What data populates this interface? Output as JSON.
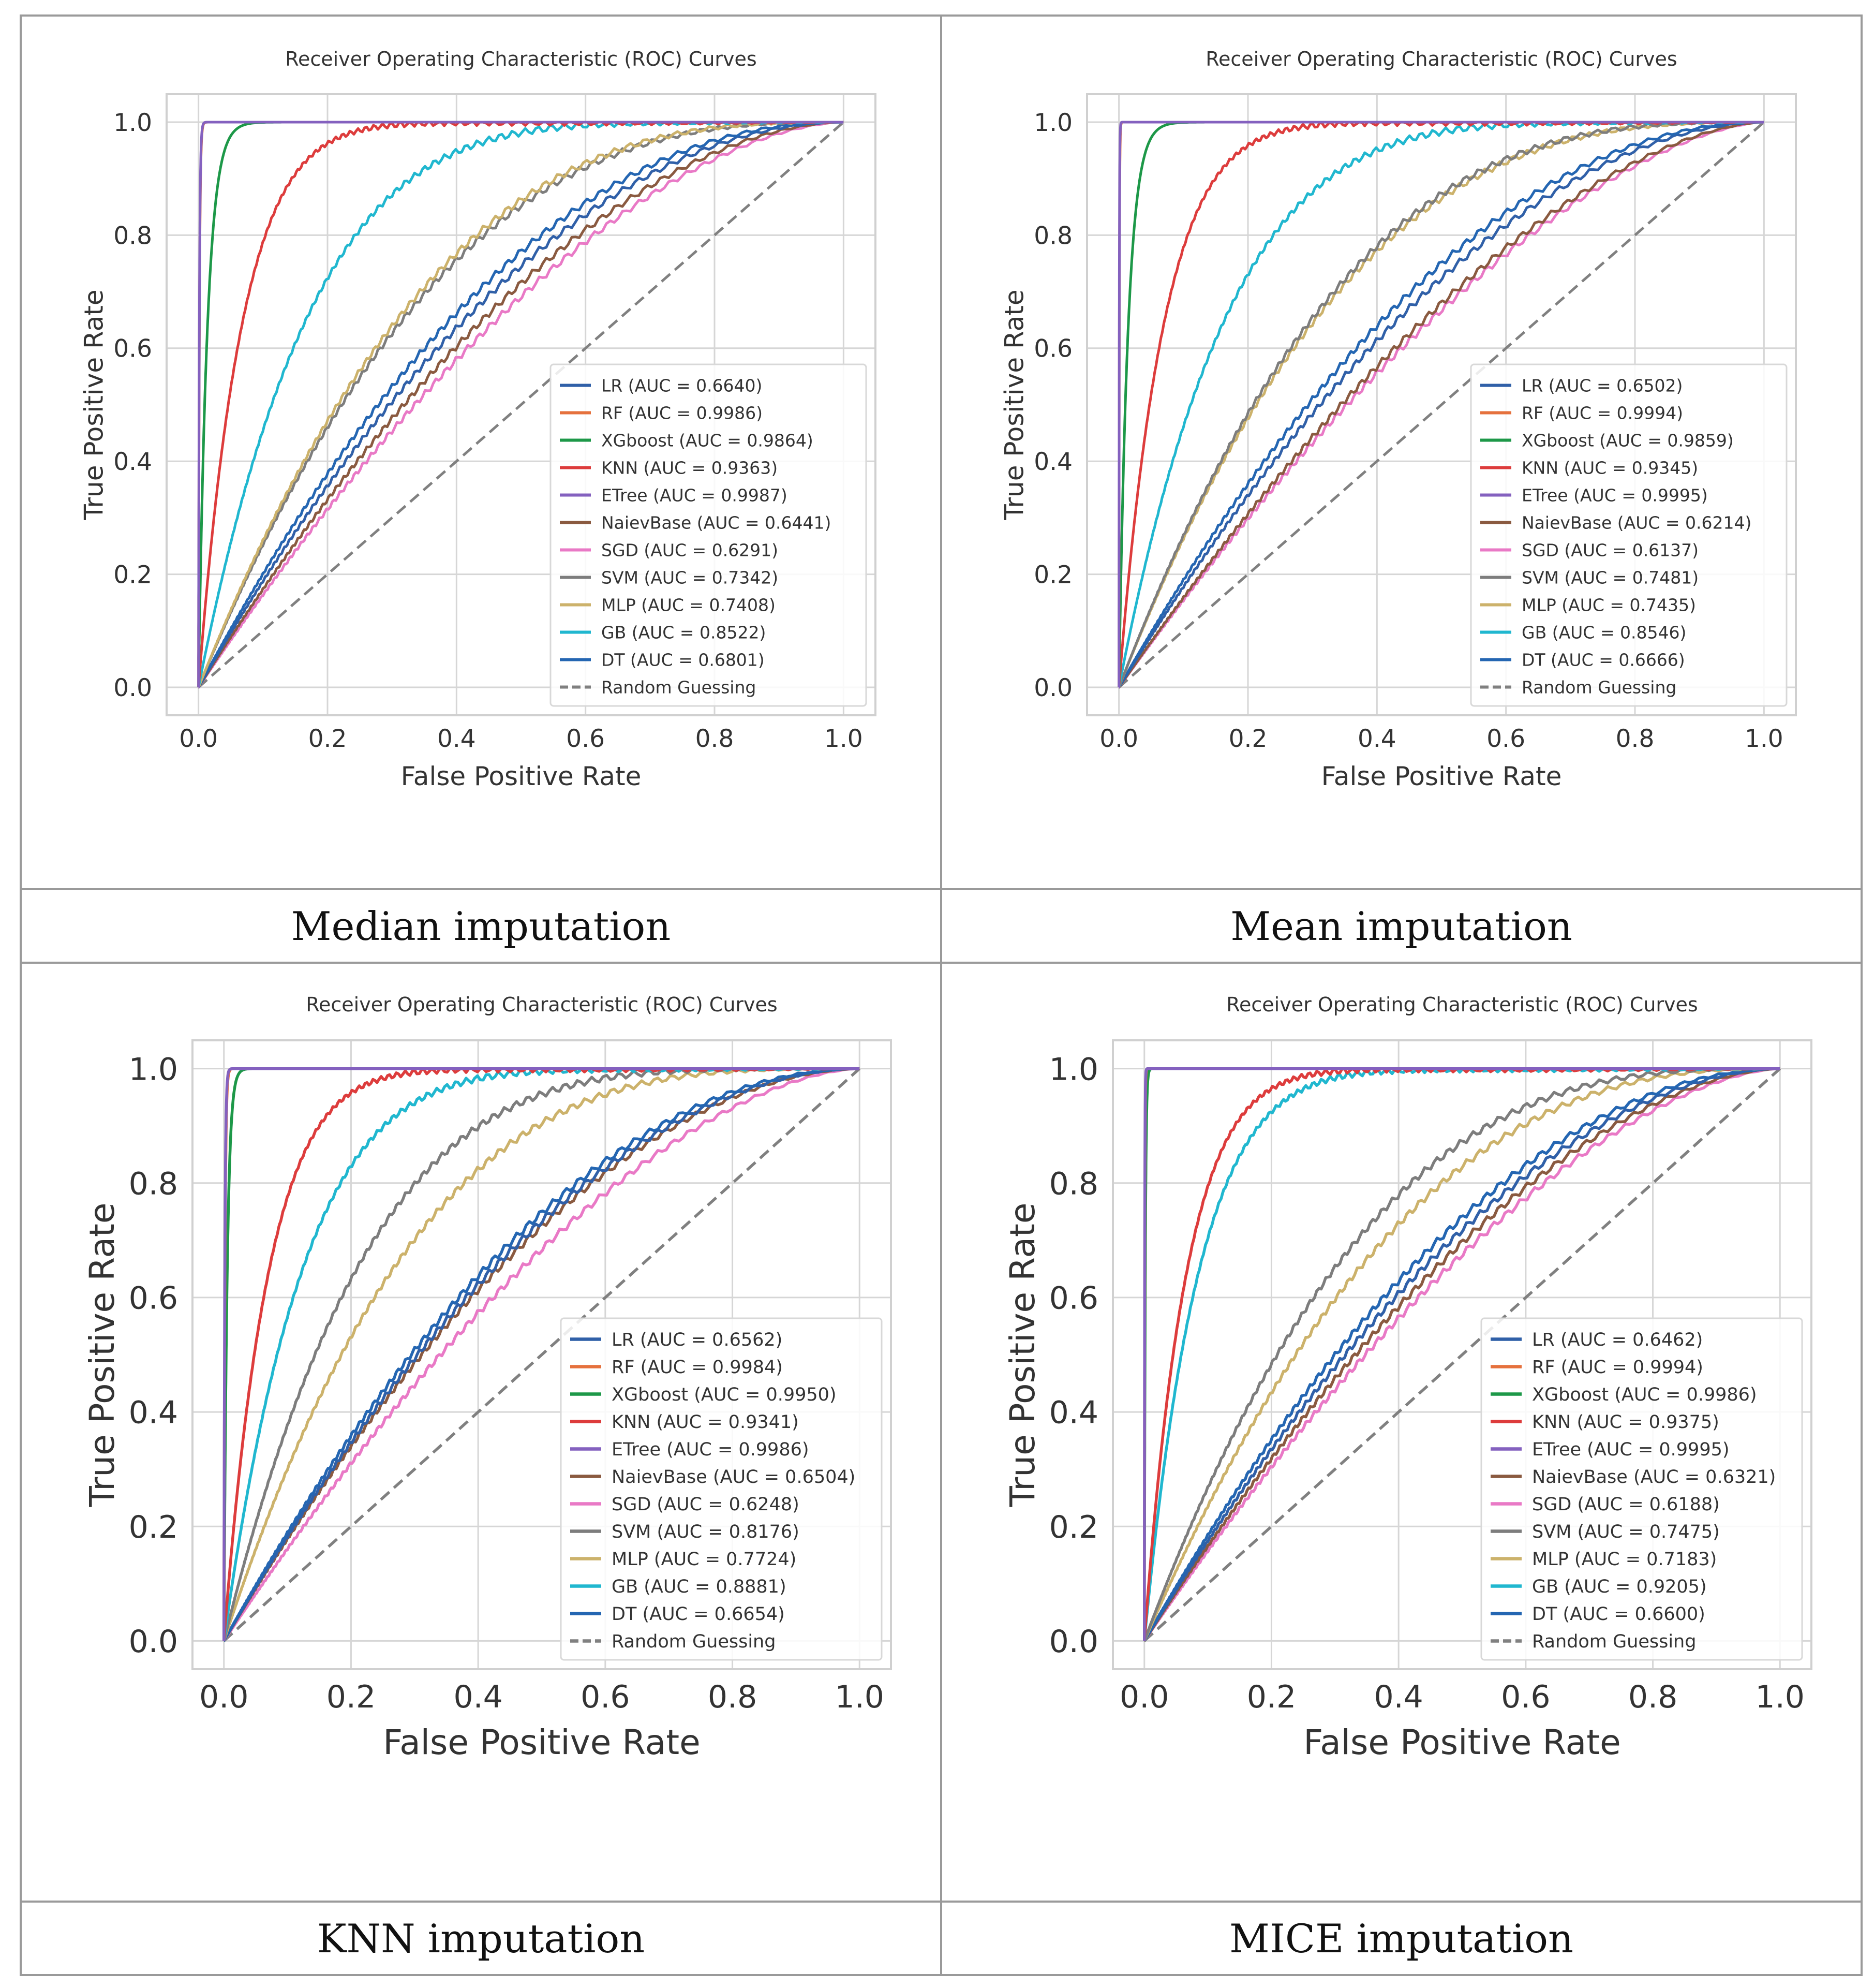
{
  "colors": {
    "LR": "#3060a8",
    "RF": "#e5713d",
    "XGboost": "#1d9848",
    "KNN": "#dd3c3c",
    "ETree": "#8461bf",
    "NaievBase": "#8a5a40",
    "SGD": "#e979c6",
    "SVM": "#7d7d7d",
    "MLP": "#ccb26b",
    "GB": "#20b7cf",
    "DT": "#2466b2",
    "Random": "#808080",
    "grid": "#d6d6d6",
    "frame": "#d0d0d0",
    "text": "#333333"
  },
  "chart_data": [
    {
      "type": "line",
      "caption": "Median imputation",
      "title": "Receiver Operating Characteristic (ROC) Curves",
      "xlabel": "False Positive Rate",
      "ylabel": "True Positive Rate",
      "xlim": [
        0,
        1
      ],
      "ylim": [
        0,
        1
      ],
      "xticks": [
        "0.0",
        "0.2",
        "0.4",
        "0.6",
        "0.8",
        "1.0"
      ],
      "yticks": [
        "0.0",
        "0.2",
        "0.4",
        "0.6",
        "0.8",
        "1.0"
      ],
      "legend_position": "lower-right",
      "series": [
        {
          "key": "LR",
          "name": "LR (AUC = 0.6640)",
          "auc": 0.664
        },
        {
          "key": "RF",
          "name": "RF (AUC = 0.9986)",
          "auc": 0.9986
        },
        {
          "key": "XGboost",
          "name": "XGboost (AUC = 0.9864)",
          "auc": 0.9864
        },
        {
          "key": "KNN",
          "name": "KNN (AUC = 0.9363)",
          "auc": 0.9363
        },
        {
          "key": "ETree",
          "name": "ETree (AUC = 0.9987)",
          "auc": 0.9987
        },
        {
          "key": "NaievBase",
          "name": "NaievBase (AUC = 0.6441)",
          "auc": 0.6441
        },
        {
          "key": "SGD",
          "name": "SGD (AUC = 0.6291)",
          "auc": 0.6291
        },
        {
          "key": "SVM",
          "name": "SVM (AUC = 0.7342)",
          "auc": 0.7342
        },
        {
          "key": "MLP",
          "name": "MLP (AUC = 0.7408)",
          "auc": 0.7408
        },
        {
          "key": "GB",
          "name": "GB (AUC = 0.8522)",
          "auc": 0.8522
        },
        {
          "key": "DT",
          "name": "DT (AUC = 0.6801)",
          "auc": 0.6801
        },
        {
          "key": "Random",
          "name": "Random Guessing",
          "auc": 0.5
        }
      ]
    },
    {
      "type": "line",
      "caption": "Mean imputation",
      "title": "Receiver Operating Characteristic (ROC) Curves",
      "xlabel": "False Positive Rate",
      "ylabel": "True Positive Rate",
      "xlim": [
        0,
        1
      ],
      "ylim": [
        0,
        1
      ],
      "xticks": [
        "0.0",
        "0.2",
        "0.4",
        "0.6",
        "0.8",
        "1.0"
      ],
      "yticks": [
        "0.0",
        "0.2",
        "0.4",
        "0.6",
        "0.8",
        "1.0"
      ],
      "legend_position": "lower-right",
      "series": [
        {
          "key": "LR",
          "name": "LR (AUC = 0.6502)",
          "auc": 0.6502
        },
        {
          "key": "RF",
          "name": "RF (AUC = 0.9994)",
          "auc": 0.9994
        },
        {
          "key": "XGboost",
          "name": "XGboost (AUC = 0.9859)",
          "auc": 0.9859
        },
        {
          "key": "KNN",
          "name": "KNN (AUC = 0.9345)",
          "auc": 0.9345
        },
        {
          "key": "ETree",
          "name": "ETree (AUC = 0.9995)",
          "auc": 0.9995
        },
        {
          "key": "NaievBase",
          "name": "NaievBase (AUC = 0.6214)",
          "auc": 0.6214
        },
        {
          "key": "SGD",
          "name": "SGD (AUC = 0.6137)",
          "auc": 0.6137
        },
        {
          "key": "SVM",
          "name": "SVM (AUC = 0.7481)",
          "auc": 0.7481
        },
        {
          "key": "MLP",
          "name": "MLP (AUC = 0.7435)",
          "auc": 0.7435
        },
        {
          "key": "GB",
          "name": "GB (AUC = 0.8546)",
          "auc": 0.8546
        },
        {
          "key": "DT",
          "name": "DT (AUC = 0.6666)",
          "auc": 0.6666
        },
        {
          "key": "Random",
          "name": "Random Guessing",
          "auc": 0.5
        }
      ]
    },
    {
      "type": "line",
      "caption": "KNN imputation",
      "title": "Receiver Operating Characteristic (ROC) Curves",
      "xlabel": "False Positive Rate",
      "ylabel": "True Positive Rate",
      "xlim": [
        0,
        1
      ],
      "ylim": [
        0,
        1
      ],
      "xticks": [
        "0.0",
        "0.2",
        "0.4",
        "0.6",
        "0.8",
        "1.0"
      ],
      "yticks": [
        "0.0",
        "0.2",
        "0.4",
        "0.6",
        "0.8",
        "1.0"
      ],
      "legend_position": "lower-right",
      "series": [
        {
          "key": "LR",
          "name": "LR (AUC = 0.6562)",
          "auc": 0.6562
        },
        {
          "key": "RF",
          "name": "RF (AUC = 0.9984)",
          "auc": 0.9984
        },
        {
          "key": "XGboost",
          "name": "XGboost (AUC = 0.9950)",
          "auc": 0.995
        },
        {
          "key": "KNN",
          "name": "KNN (AUC = 0.9341)",
          "auc": 0.9341
        },
        {
          "key": "ETree",
          "name": "ETree (AUC = 0.9986)",
          "auc": 0.9986
        },
        {
          "key": "NaievBase",
          "name": "NaievBase (AUC = 0.6504)",
          "auc": 0.6504
        },
        {
          "key": "SGD",
          "name": "SGD (AUC = 0.6248)",
          "auc": 0.6248
        },
        {
          "key": "SVM",
          "name": "SVM (AUC = 0.8176)",
          "auc": 0.8176
        },
        {
          "key": "MLP",
          "name": "MLP (AUC = 0.7724)",
          "auc": 0.7724
        },
        {
          "key": "GB",
          "name": "GB (AUC = 0.8881)",
          "auc": 0.8881
        },
        {
          "key": "DT",
          "name": "DT (AUC = 0.6654)",
          "auc": 0.6654
        },
        {
          "key": "Random",
          "name": "Random Guessing",
          "auc": 0.5
        }
      ]
    },
    {
      "type": "line",
      "caption": "MICE imputation",
      "title": "Receiver Operating Characteristic (ROC) Curves",
      "xlabel": "False Positive Rate",
      "ylabel": "True Positive Rate",
      "xlim": [
        0,
        1
      ],
      "ylim": [
        0,
        1
      ],
      "xticks": [
        "0.0",
        "0.2",
        "0.4",
        "0.6",
        "0.8",
        "1.0"
      ],
      "yticks": [
        "0.0",
        "0.2",
        "0.4",
        "0.6",
        "0.8",
        "1.0"
      ],
      "legend_position": "lower-right",
      "series": [
        {
          "key": "LR",
          "name": "LR (AUC = 0.6462)",
          "auc": 0.6462
        },
        {
          "key": "RF",
          "name": "RF (AUC = 0.9994)",
          "auc": 0.9994
        },
        {
          "key": "XGboost",
          "name": "XGboost (AUC = 0.9986)",
          "auc": 0.9986
        },
        {
          "key": "KNN",
          "name": "KNN (AUC = 0.9375)",
          "auc": 0.9375
        },
        {
          "key": "ETree",
          "name": "ETree (AUC = 0.9995)",
          "auc": 0.9995
        },
        {
          "key": "NaievBase",
          "name": "NaievBase (AUC = 0.6321)",
          "auc": 0.6321
        },
        {
          "key": "SGD",
          "name": "SGD (AUC = 0.6188)",
          "auc": 0.6188
        },
        {
          "key": "SVM",
          "name": "SVM (AUC = 0.7475)",
          "auc": 0.7475
        },
        {
          "key": "MLP",
          "name": "MLP (AUC = 0.7183)",
          "auc": 0.7183
        },
        {
          "key": "GB",
          "name": "GB (AUC = 0.9205)",
          "auc": 0.9205
        },
        {
          "key": "DT",
          "name": "DT (AUC = 0.6600)",
          "auc": 0.66
        },
        {
          "key": "Random",
          "name": "Random Guessing",
          "auc": 0.5
        }
      ]
    }
  ]
}
